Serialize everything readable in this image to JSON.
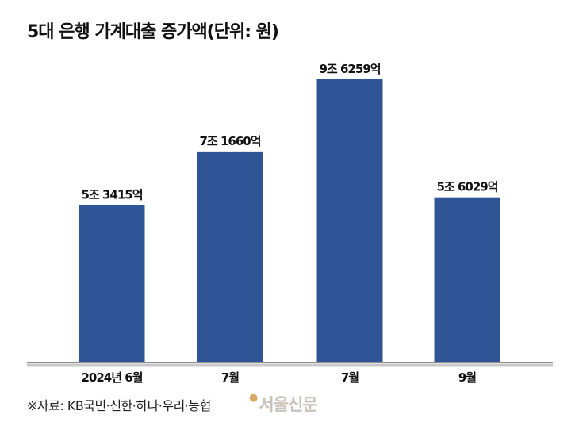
{
  "chart_data": {
    "type": "bar",
    "title": "5대 은행 가계대출 증가액(단위: 원)",
    "categories": [
      "2024년 6월",
      "7월",
      "7월",
      "9월"
    ],
    "values": [
      53415,
      71660,
      96259,
      56029
    ],
    "value_unit": "억원",
    "data_labels": [
      "5조 3415억",
      "7조 1660억",
      "9조 6259억",
      "5조 6029억"
    ],
    "ylim": [
      0,
      100000
    ],
    "grid": false,
    "legend": "none",
    "bar_color": "#2f5597"
  },
  "source": "※자료: KB국민·신한·하나·우리·농협",
  "watermark": "서울신문"
}
